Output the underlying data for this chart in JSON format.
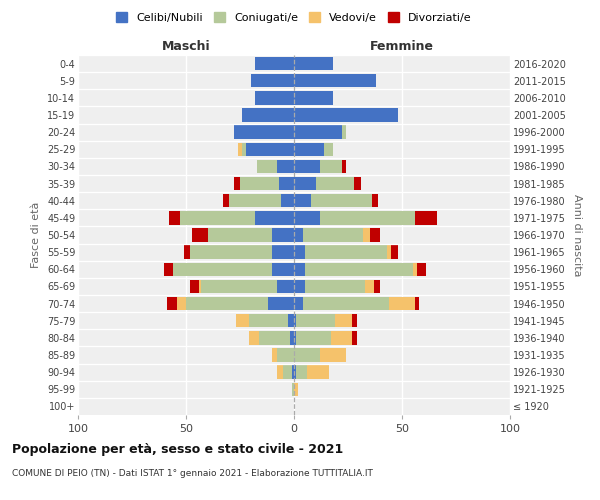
{
  "age_groups": [
    "100+",
    "95-99",
    "90-94",
    "85-89",
    "80-84",
    "75-79",
    "70-74",
    "65-69",
    "60-64",
    "55-59",
    "50-54",
    "45-49",
    "40-44",
    "35-39",
    "30-34",
    "25-29",
    "20-24",
    "15-19",
    "10-14",
    "5-9",
    "0-4"
  ],
  "birth_years": [
    "≤ 1920",
    "1921-1925",
    "1926-1930",
    "1931-1935",
    "1936-1940",
    "1941-1945",
    "1946-1950",
    "1951-1955",
    "1956-1960",
    "1961-1965",
    "1966-1970",
    "1971-1975",
    "1976-1980",
    "1981-1985",
    "1986-1990",
    "1991-1995",
    "1996-2000",
    "2001-2005",
    "2006-2010",
    "2011-2015",
    "2016-2020"
  ],
  "males_celibi": [
    0,
    0,
    1,
    0,
    2,
    3,
    12,
    8,
    10,
    10,
    10,
    18,
    6,
    7,
    8,
    22,
    28,
    24,
    18,
    20,
    18
  ],
  "males_coniugati": [
    0,
    1,
    4,
    8,
    14,
    18,
    38,
    35,
    46,
    38,
    30,
    35,
    24,
    18,
    9,
    2,
    0,
    0,
    0,
    0,
    0
  ],
  "males_vedovi": [
    0,
    0,
    3,
    2,
    5,
    6,
    4,
    1,
    0,
    0,
    0,
    0,
    0,
    0,
    0,
    2,
    0,
    0,
    0,
    0,
    0
  ],
  "males_divorziati": [
    0,
    0,
    0,
    0,
    0,
    0,
    5,
    4,
    4,
    3,
    7,
    5,
    3,
    3,
    0,
    0,
    0,
    0,
    0,
    0,
    0
  ],
  "females_nubili": [
    0,
    0,
    1,
    0,
    1,
    1,
    4,
    5,
    5,
    5,
    4,
    12,
    8,
    10,
    12,
    14,
    22,
    48,
    18,
    38,
    18
  ],
  "females_coniugate": [
    0,
    0,
    5,
    12,
    16,
    18,
    40,
    28,
    50,
    38,
    28,
    44,
    28,
    18,
    10,
    4,
    2,
    0,
    0,
    0,
    0
  ],
  "females_vedove": [
    0,
    2,
    10,
    12,
    10,
    8,
    12,
    4,
    2,
    2,
    3,
    0,
    0,
    0,
    0,
    0,
    0,
    0,
    0,
    0,
    0
  ],
  "females_divorziate": [
    0,
    0,
    0,
    0,
    2,
    2,
    2,
    3,
    4,
    3,
    5,
    10,
    3,
    3,
    2,
    0,
    0,
    0,
    0,
    0,
    0
  ],
  "color_celibi": "#4472c4",
  "color_coniugati": "#b5c99a",
  "color_vedovi": "#f5c26b",
  "color_divorziati": "#c00000",
  "legend_labels": [
    "Celibi/Nubili",
    "Coniugati/e",
    "Vedovi/e",
    "Divorziati/e"
  ],
  "title": "Popolazione per età, sesso e stato civile - 2021",
  "subtitle": "COMUNE DI PEIO (TN) - Dati ISTAT 1° gennaio 2021 - Elaborazione TUTTITALIA.IT",
  "label_maschi": "Maschi",
  "label_femmine": "Femmine",
  "ylabel_left": "Fasce di età",
  "ylabel_right": "Anni di nascita",
  "xlim": 100
}
